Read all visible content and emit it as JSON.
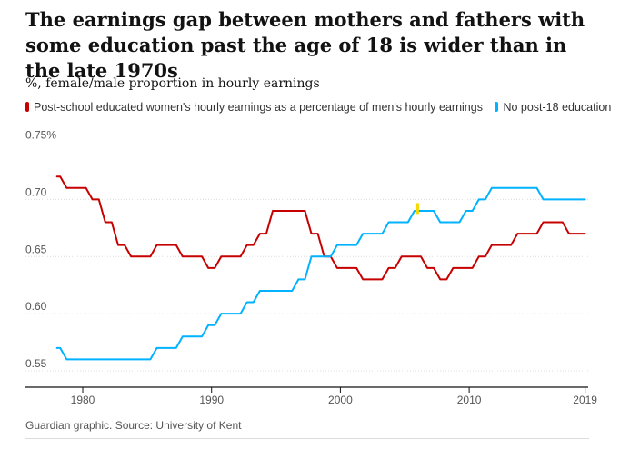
{
  "chart_data": {
    "type": "line",
    "title": "The earnings gap between mothers and fathers with some education past the age of 18 is wider than in the late 1970s",
    "ylabel": "%, female/male proportion in hourly earnings",
    "ylim": [
      0.55,
      0.75
    ],
    "xlim": [
      1977,
      2019
    ],
    "y_ticks": [
      {
        "value": 0.75,
        "label": "0.75%"
      },
      {
        "value": 0.7,
        "label": "0.70"
      },
      {
        "value": 0.65,
        "label": "0.65"
      },
      {
        "value": 0.6,
        "label": "0.60"
      },
      {
        "value": 0.55,
        "label": "0.55"
      }
    ],
    "x_ticks": [
      {
        "value": 1980,
        "label": "1980"
      },
      {
        "value": 1990,
        "label": "1990"
      },
      {
        "value": 2000,
        "label": "2000"
      },
      {
        "value": 2010,
        "label": "2010"
      },
      {
        "value": 2019,
        "label": "2019"
      }
    ],
    "grid": true,
    "legend_position": "top",
    "step": true,
    "x": [
      1978,
      1979,
      1980,
      1981,
      1982,
      1983,
      1984,
      1985,
      1986,
      1987,
      1988,
      1989,
      1990,
      1991,
      1992,
      1993,
      1994,
      1995,
      1996,
      1997,
      1998,
      1999,
      2000,
      2001,
      2002,
      2003,
      2004,
      2005,
      2006,
      2007,
      2008,
      2009,
      2010,
      2011,
      2012,
      2013,
      2014,
      2015,
      2016,
      2017,
      2018,
      2019
    ],
    "series": [
      {
        "name": "Post-school educated women's hourly earnings as a percentage of men's hourly earnings",
        "color": "#c70000",
        "values": [
          0.72,
          0.71,
          0.71,
          0.7,
          0.68,
          0.66,
          0.65,
          0.65,
          0.66,
          0.66,
          0.65,
          0.65,
          0.64,
          0.65,
          0.65,
          0.66,
          0.67,
          0.69,
          0.69,
          0.69,
          0.67,
          0.65,
          0.64,
          0.64,
          0.63,
          0.63,
          0.64,
          0.65,
          0.65,
          0.64,
          0.63,
          0.64,
          0.64,
          0.65,
          0.66,
          0.66,
          0.67,
          0.67,
          0.68,
          0.68,
          0.67,
          0.67
        ]
      },
      {
        "name": "No post-18 education",
        "color": "#00b2ff",
        "values": [
          0.57,
          0.56,
          0.56,
          0.56,
          0.56,
          0.56,
          0.56,
          0.56,
          0.57,
          0.57,
          0.58,
          0.58,
          0.59,
          0.6,
          0.6,
          0.61,
          0.62,
          0.62,
          0.62,
          0.63,
          0.65,
          0.65,
          0.66,
          0.66,
          0.67,
          0.67,
          0.68,
          0.68,
          0.69,
          0.69,
          0.68,
          0.68,
          0.69,
          0.7,
          0.71,
          0.71,
          0.71,
          0.71,
          0.7,
          0.7,
          0.7,
          0.7
        ]
      }
    ],
    "marker": {
      "x": 2006,
      "y": 0.692,
      "color": "#f5d800"
    },
    "source": "Guardian graphic. Source: University of Kent"
  }
}
